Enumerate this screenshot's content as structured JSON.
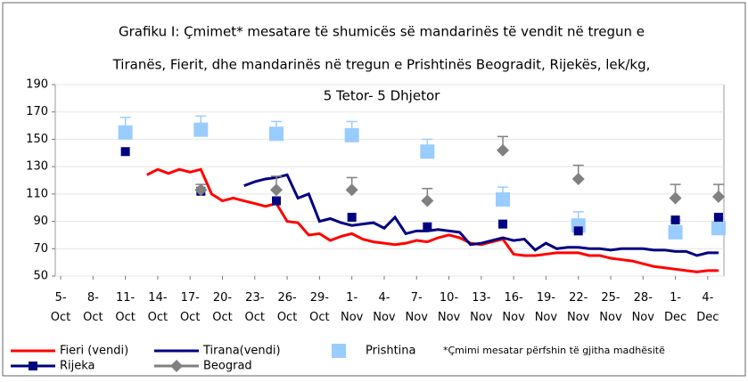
{
  "chart_data": {
    "type": "line",
    "title": [
      "Grafiku I: Çmimet* mesatare të shumicës së mandarinës të vendit në tregun e",
      "Tiranës, Fierit, dhe mandarinës në tregun e Prishtinës Beogradit, Rijekës, lek/kg,",
      "5 Tetor- 5 Dhjetor"
    ],
    "note": "*Çmimi mesatar përfshin të gjitha madhësitë",
    "xlim": [
      -0.5,
      61.5
    ],
    "xticks": [
      {
        "value": 0,
        "label": "5-Oct"
      },
      {
        "value": 3,
        "label": "8-Oct"
      },
      {
        "value": 6,
        "label": "11-Oct"
      },
      {
        "value": 9,
        "label": "14-Oct"
      },
      {
        "value": 12,
        "label": "17-Oct"
      },
      {
        "value": 15,
        "label": "20-Oct"
      },
      {
        "value": 18,
        "label": "23-Oct"
      },
      {
        "value": 21,
        "label": "26-Oct"
      },
      {
        "value": 24,
        "label": "29-Oct"
      },
      {
        "value": 27,
        "label": "1-Nov"
      },
      {
        "value": 30,
        "label": "4-Nov"
      },
      {
        "value": 33,
        "label": "7-Nov"
      },
      {
        "value": 36,
        "label": "10-Nov"
      },
      {
        "value": 39,
        "label": "13-Nov"
      },
      {
        "value": 42,
        "label": "16-Nov"
      },
      {
        "value": 45,
        "label": "19-Nov"
      },
      {
        "value": 48,
        "label": "22-Nov"
      },
      {
        "value": 51,
        "label": "25-Nov"
      },
      {
        "value": 54,
        "label": "28-Nov"
      },
      {
        "value": 57,
        "label": "1-Dec"
      },
      {
        "value": 60,
        "label": "4-Dec"
      }
    ],
    "ylim": [
      50,
      190
    ],
    "yticks": [
      50,
      70,
      90,
      110,
      130,
      150,
      170,
      190
    ],
    "grid": true,
    "series": [
      {
        "name": "Fieri (vendi)",
        "type": "line",
        "color": "#ff0000",
        "x": [
          8,
          9,
          10,
          11,
          12,
          13,
          14,
          15,
          16,
          17,
          18,
          19,
          20,
          21,
          22,
          23,
          24,
          25,
          26,
          27,
          28,
          29,
          30,
          31,
          32,
          33,
          34,
          35,
          36,
          37,
          38,
          39,
          40,
          41,
          42,
          43,
          44,
          45,
          46,
          47,
          48,
          49,
          50,
          51,
          52,
          53,
          54,
          55,
          56,
          57,
          58,
          59,
          60,
          61
        ],
        "values": [
          124,
          128,
          125,
          128,
          126,
          128,
          110,
          105,
          107,
          105,
          103,
          101,
          103,
          90,
          89,
          80,
          81,
          76,
          79,
          81,
          77,
          75,
          74,
          73,
          74,
          76,
          75,
          78,
          80,
          78,
          74,
          73,
          75,
          77,
          66,
          65,
          65,
          66,
          67,
          67,
          67,
          65,
          65,
          63,
          62,
          61,
          59,
          57,
          56,
          55,
          54,
          53,
          54,
          54
        ]
      },
      {
        "name": "Tirana(vendi)",
        "type": "line",
        "color": "#000080",
        "x": [
          17,
          18,
          19,
          20,
          21,
          22,
          23,
          24,
          25,
          26,
          27,
          28,
          29,
          30,
          31,
          32,
          33,
          34,
          35,
          36,
          37,
          38,
          39,
          40,
          41,
          42,
          43,
          44,
          45,
          46,
          47,
          48,
          49,
          50,
          51,
          52,
          53,
          54,
          55,
          56,
          57,
          58,
          59,
          60,
          61
        ],
        "values": [
          116,
          119,
          121,
          122,
          124,
          107,
          110,
          90,
          92,
          89,
          87,
          88,
          89,
          85,
          93,
          81,
          83,
          83,
          84,
          83,
          82,
          73,
          74,
          76,
          78,
          76,
          77,
          69,
          74,
          70,
          71,
          71,
          70,
          70,
          69,
          70,
          70,
          70,
          69,
          69,
          68,
          68,
          65,
          67,
          67
        ]
      },
      {
        "name": "Prishtina",
        "type": "scatter",
        "marker": "bigsquare",
        "color": "#99ccff",
        "x": [
          6,
          13,
          20,
          27,
          34,
          41,
          48,
          57,
          61
        ],
        "values": [
          155,
          157,
          154,
          153,
          141,
          106,
          87,
          82,
          85
        ],
        "errors": [
          11,
          10,
          9,
          10,
          9,
          9,
          10,
          9,
          8
        ]
      },
      {
        "name": "Rijeka",
        "type": "scatter",
        "marker": "square",
        "color": "#000080",
        "x": [
          6,
          13,
          20,
          27,
          34,
          41,
          48,
          57,
          61
        ],
        "values": [
          141,
          112,
          105,
          93,
          86,
          88,
          83,
          91,
          93
        ]
      },
      {
        "name": "Beograd",
        "type": "scatter",
        "marker": "diamond",
        "color": "#808080",
        "x": [
          13,
          20,
          27,
          34,
          41,
          48,
          57,
          61
        ],
        "values": [
          113,
          113,
          113,
          105,
          142,
          121,
          107,
          108
        ],
        "errors": [
          4,
          10,
          9,
          9,
          10,
          10,
          10,
          9
        ]
      }
    ]
  }
}
